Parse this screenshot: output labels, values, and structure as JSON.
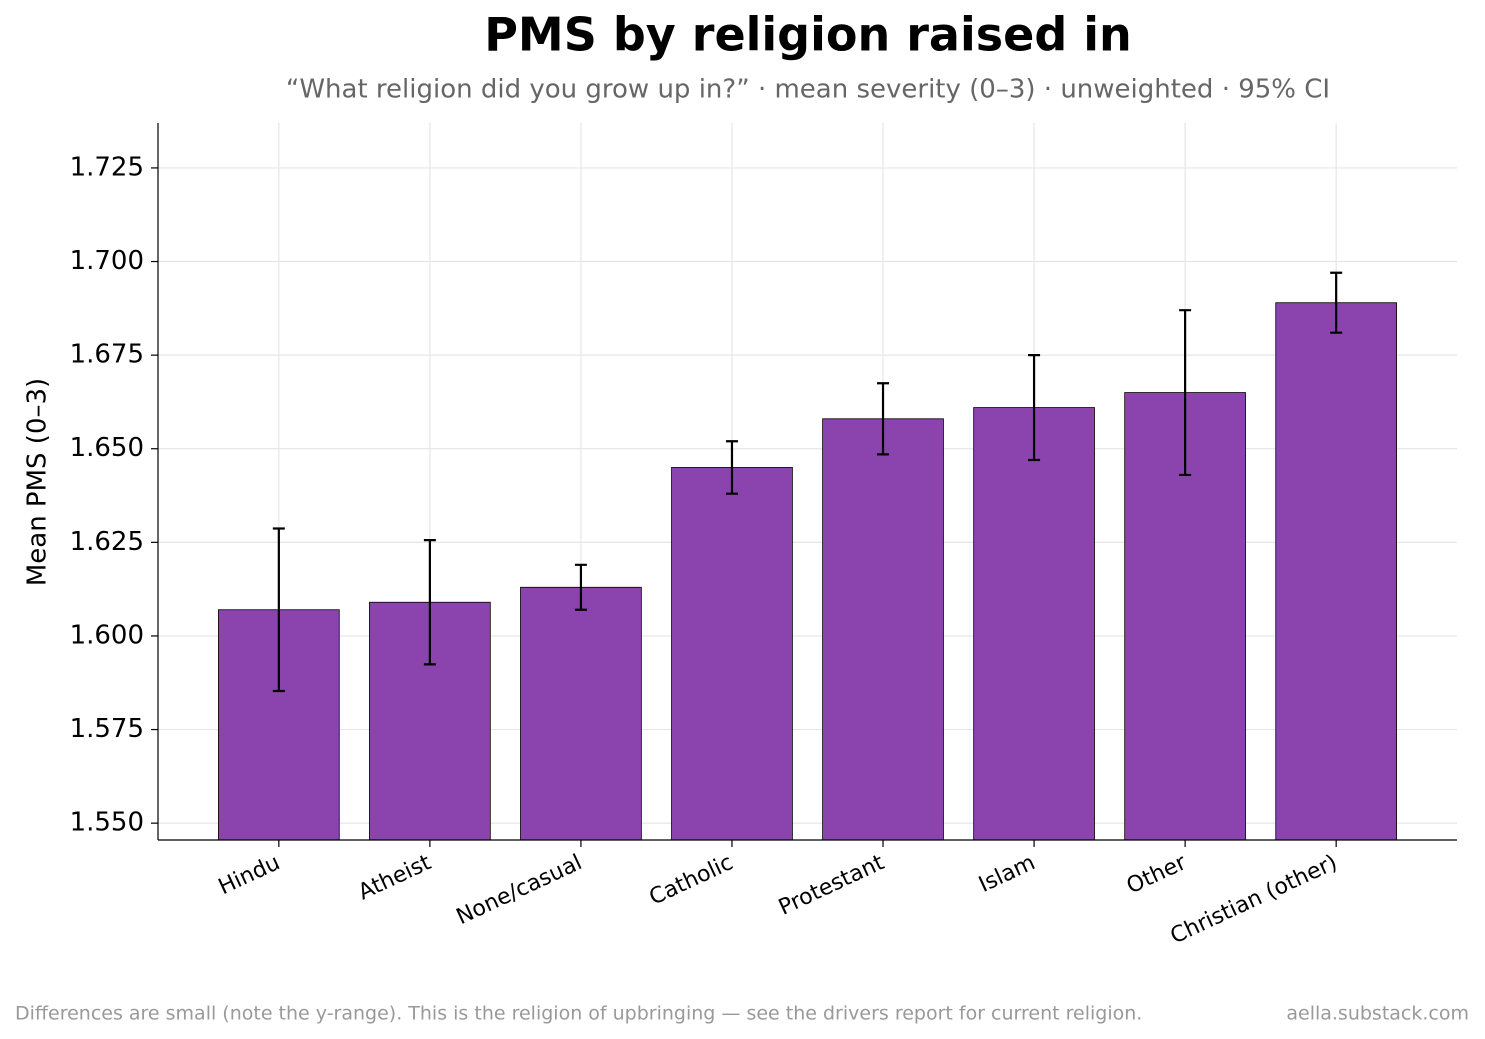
{
  "chart_data": {
    "type": "bar",
    "title": "PMS by religion raised in",
    "subtitle": "“What religion did you grow up in?” · mean severity (0–3) · unweighted · 95% CI",
    "y_label": "Mean PMS (0–3)",
    "categories": [
      "Hindu",
      "Atheist",
      "None/casual",
      "Catholic",
      "Protestant",
      "Islam",
      "Other",
      "Christian (other)"
    ],
    "values": [
      1.607,
      1.609,
      1.613,
      1.645,
      1.658,
      1.661,
      1.665,
      1.689
    ],
    "errors": [
      0.0217,
      0.0166,
      0.006,
      0.007,
      0.0095,
      0.014,
      0.022,
      0.008
    ],
    "color": "#8b44ad",
    "ylim": [
      1.5455,
      1.737
    ],
    "yticks": [
      {
        "value": 1.55,
        "label": "1.550"
      },
      {
        "value": 1.575,
        "label": "1.575"
      },
      {
        "value": 1.6,
        "label": "1.600"
      },
      {
        "value": 1.625,
        "label": "1.625"
      },
      {
        "value": 1.65,
        "label": "1.650"
      },
      {
        "value": 1.675,
        "label": "1.675"
      },
      {
        "value": 1.7,
        "label": "1.700"
      },
      {
        "value": 1.725,
        "label": "1.725"
      }
    ],
    "grid": true,
    "footnote": "Differences are small (note the y-range). This is the religion of upbringing — see the drivers report for current religion.",
    "source": "aella.substack.com"
  }
}
